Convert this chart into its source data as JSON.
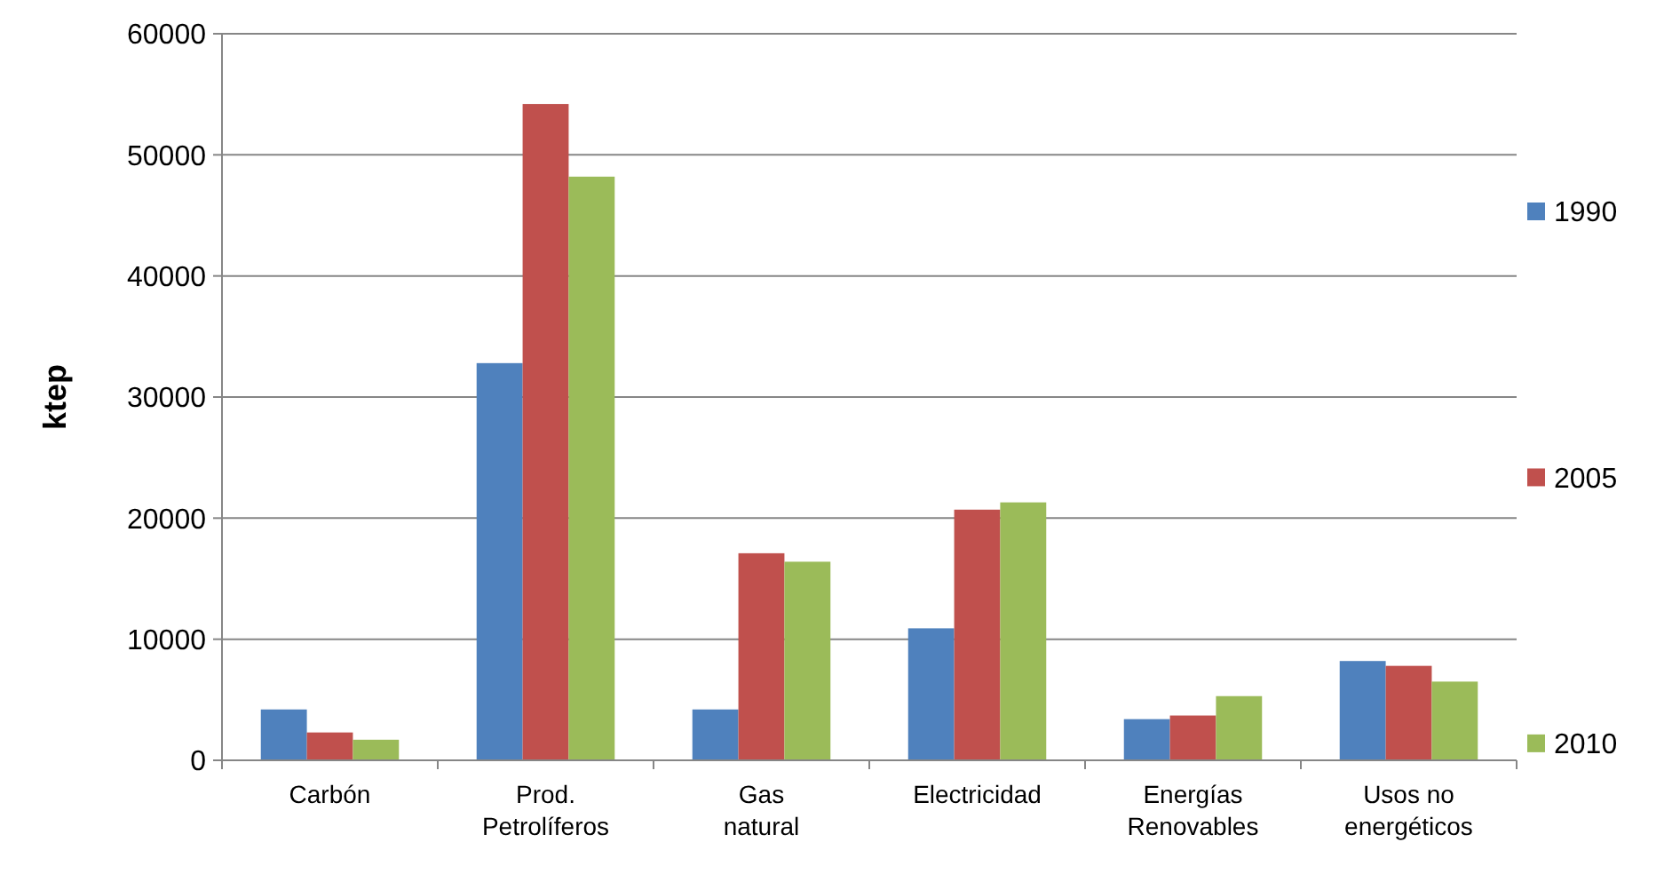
{
  "chart_data": {
    "type": "bar",
    "ylabel": "ktep",
    "categories": [
      "Carbón",
      "Prod. Petrolíferos",
      "Gas natural",
      "Electricidad",
      "Energías Renovables",
      "Usos no energéticos"
    ],
    "series": [
      {
        "name": "1990",
        "color": "#4f81bd",
        "values": [
          4200,
          32800,
          4200,
          10900,
          3400,
          8200
        ]
      },
      {
        "name": "2005",
        "color": "#c0504d",
        "values": [
          2300,
          54200,
          17100,
          20700,
          3700,
          7800
        ]
      },
      {
        "name": "2010",
        "color": "#9bbb59",
        "values": [
          1700,
          48200,
          16400,
          21300,
          5300,
          6500
        ]
      }
    ],
    "ylim": [
      0,
      60000
    ],
    "yticks": [
      0,
      10000,
      20000,
      30000,
      40000,
      50000,
      60000
    ],
    "grid": "y",
    "legend": "right"
  }
}
